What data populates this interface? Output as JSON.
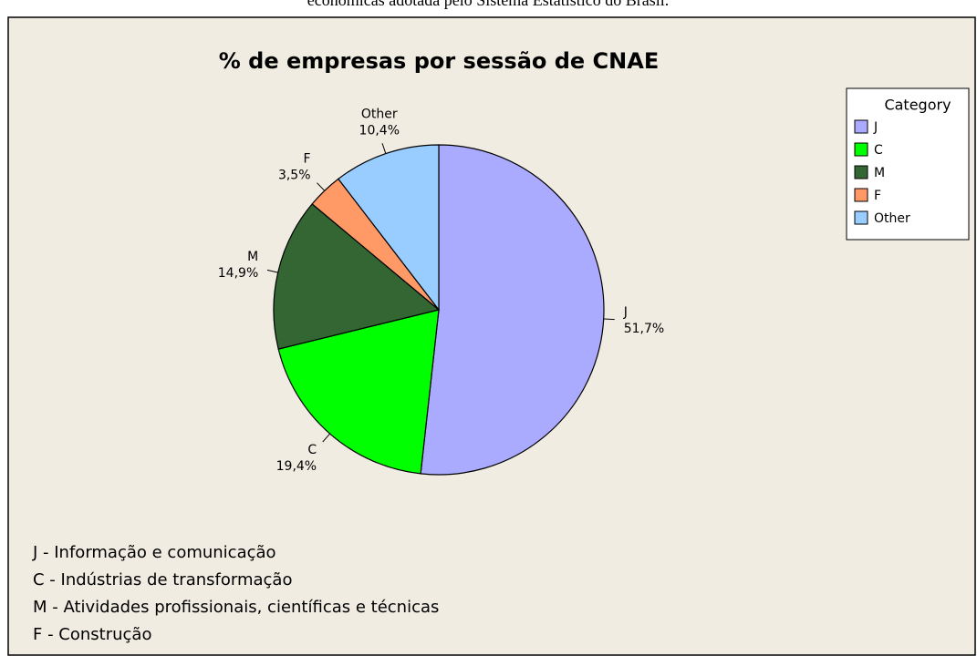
{
  "caption": "econômicas adotada pelo Sistema Estatístico do Brasil.",
  "chart_data": {
    "type": "pie",
    "title": "% de empresas por sessão de CNAE",
    "categories": [
      "J",
      "C",
      "M",
      "F",
      "Other"
    ],
    "values": [
      51.7,
      19.4,
      14.9,
      3.5,
      10.4
    ],
    "value_labels": [
      "51,7%",
      "19,4%",
      "14,9%",
      "3,5%",
      "10,4%"
    ],
    "colors": [
      "#aaaaff",
      "#00ff00",
      "#336633",
      "#ff9966",
      "#99ccff"
    ],
    "legend_title": "Category",
    "legend": "top-right"
  },
  "notes": [
    "J - Informação e comunicação",
    "C - Indústrias de transformação",
    "M - Atividades profissionais, científicas e técnicas",
    "F - Construção"
  ]
}
